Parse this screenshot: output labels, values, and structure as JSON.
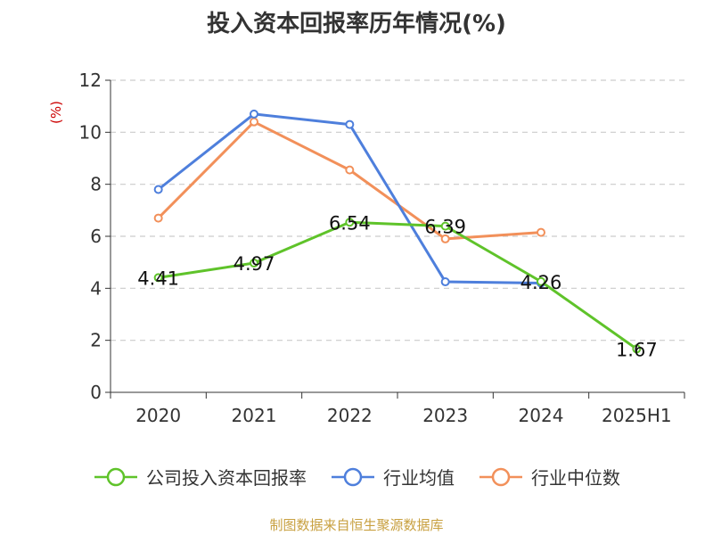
{
  "chart_data": {
    "type": "line",
    "title": "投入资本回报率历年情况(%)",
    "ylabel": "(%)",
    "xlabel": "",
    "categories": [
      "2020",
      "2021",
      "2022",
      "2023",
      "2024",
      "2025H1"
    ],
    "ylim": [
      0,
      12
    ],
    "yticks": [
      0,
      2,
      4,
      6,
      8,
      10,
      12
    ],
    "grid": true,
    "legend_position": "bottom",
    "series": [
      {
        "name": "公司投入资本回报率",
        "color": "#5fc32a",
        "values": [
          4.41,
          4.97,
          6.54,
          6.39,
          4.26,
          1.67
        ],
        "labels": [
          "4.41",
          "4.97",
          "6.54",
          "6.39",
          "4.26",
          "1.67"
        ]
      },
      {
        "name": "行业均值",
        "color": "#4e7fdc",
        "values": [
          7.8,
          10.7,
          10.3,
          4.25,
          4.2,
          null
        ]
      },
      {
        "name": "行业中位数",
        "color": "#f2905a",
        "values": [
          6.7,
          10.4,
          8.55,
          5.9,
          6.15,
          null
        ]
      }
    ]
  },
  "footer": {
    "source": "制图数据来自恒生聚源数据库"
  }
}
